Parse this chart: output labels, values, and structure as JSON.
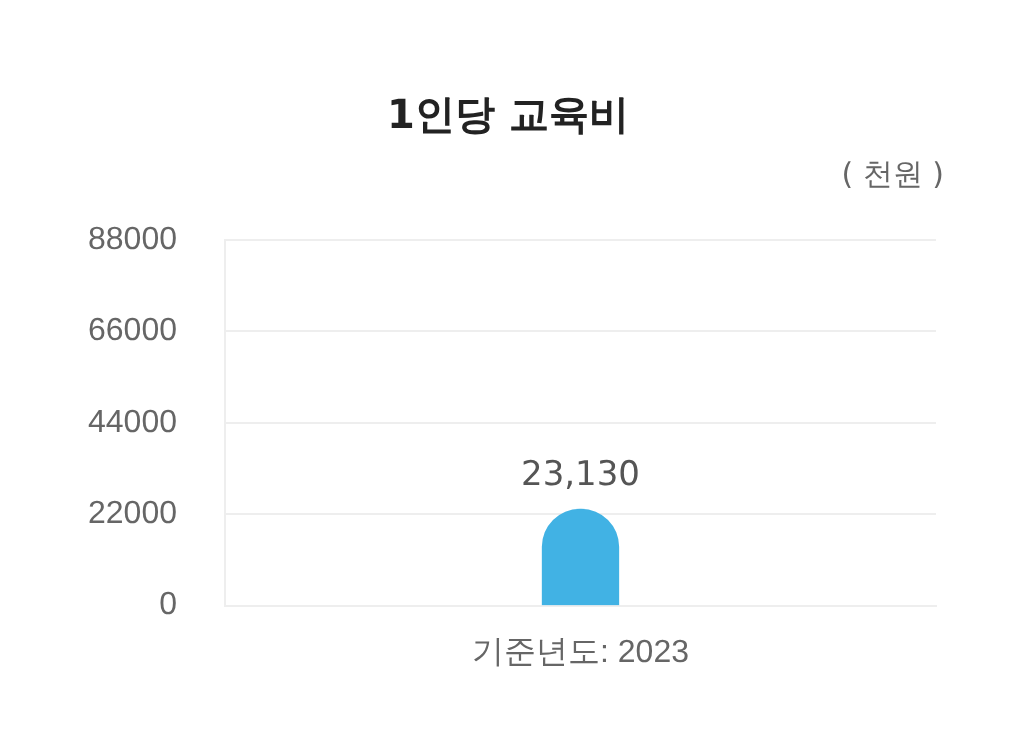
{
  "chart_data": {
    "type": "bar",
    "title": "1인당 교육비",
    "ylabel": "( 천원 )",
    "categories": [
      "기준년도: 2023"
    ],
    "values": [
      23130
    ],
    "value_labels": [
      "23,130"
    ],
    "color": "#41b2e4",
    "ylim": [
      0,
      88000
    ],
    "yticks": [
      0,
      22000,
      44000,
      66000,
      88000
    ],
    "grid": "y",
    "legend": false
  }
}
